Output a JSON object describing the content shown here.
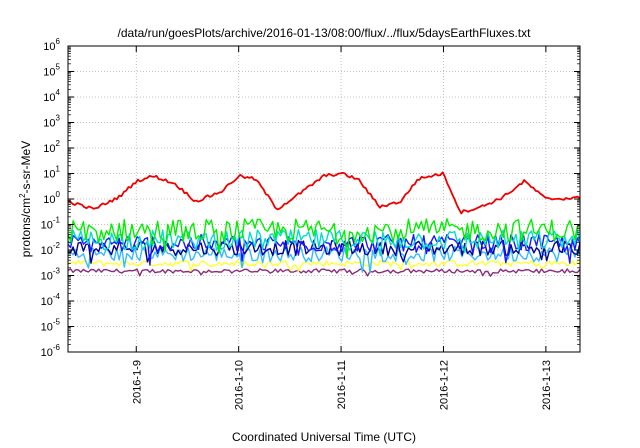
{
  "chart_data": {
    "type": "line",
    "title": "/data/run/goesPlots/archive/2016-01-13/08:00/flux/../flux/5daysEarthFluxes.txt",
    "xlabel": "Coordinated Universal Time (UTC)",
    "ylabel": "protons/cm2-s-sr-MeV",
    "y_scale": "log",
    "ylim": [
      1e-06,
      1000000.0
    ],
    "y_ticks": [
      {
        "base": "10",
        "exp": "-6",
        "value": 1e-06
      },
      {
        "base": "10",
        "exp": "-5",
        "value": 1e-05
      },
      {
        "base": "10",
        "exp": "-4",
        "value": 0.0001
      },
      {
        "base": "10",
        "exp": "-3",
        "value": 0.001
      },
      {
        "base": "10",
        "exp": "-2",
        "value": 0.01
      },
      {
        "base": "10",
        "exp": "-1",
        "value": 0.1
      },
      {
        "base": "10",
        "exp": "0",
        "value": 1
      },
      {
        "base": "10",
        "exp": "1",
        "value": 10
      },
      {
        "base": "10",
        "exp": "2",
        "value": 100
      },
      {
        "base": "10",
        "exp": "3",
        "value": 1000
      },
      {
        "base": "10",
        "exp": "4",
        "value": 10000
      },
      {
        "base": "10",
        "exp": "5",
        "value": 100000
      },
      {
        "base": "10",
        "exp": "6",
        "value": 1000000
      }
    ],
    "xlim": [
      "2016-01-08T08:00",
      "2016-01-13T08:00"
    ],
    "x_ticks": [
      "2016-1-9",
      "2016-1-10",
      "2016-1-11",
      "2016-1-12",
      "2016-1-13"
    ],
    "grid": true,
    "series": [
      {
        "color": "#ee0000",
        "kind": "red_diurnal",
        "x": [
          "2016-01-08T08:00",
          "2016-01-08T14:00",
          "2016-01-08T20:00",
          "2016-01-09T00:00",
          "2016-01-09T04:00",
          "2016-01-09T09:00",
          "2016-01-09T14:00",
          "2016-01-09T20:00",
          "2016-01-10T00:00",
          "2016-01-10T04:00",
          "2016-01-10T09:00",
          "2016-01-10T14:00",
          "2016-01-10T20:00",
          "2016-01-11T00:00",
          "2016-01-11T04:00",
          "2016-01-11T09:00",
          "2016-01-11T14:00",
          "2016-01-11T18:00",
          "2016-01-11T21:00",
          "2016-01-12T00:00",
          "2016-01-12T04:00",
          "2016-01-12T09:00",
          "2016-01-12T14:00",
          "2016-01-12T19:00",
          "2016-01-13T00:00",
          "2016-01-13T08:00"
        ],
        "values": [
          0.8,
          0.4,
          1.2,
          5,
          8,
          4,
          0.8,
          2,
          8,
          6,
          0.4,
          1.5,
          8,
          10,
          6,
          0.5,
          0.8,
          6,
          8,
          10,
          0.3,
          0.5,
          1.2,
          5,
          1.0,
          1.1
        ]
      },
      {
        "color": "#00ee00",
        "level": 0.06,
        "spread": 0.45
      },
      {
        "color": "#00ddcc",
        "level": 0.025,
        "spread": 0.4
      },
      {
        "color": "#1a1aff",
        "level": 0.018,
        "spread": 0.35
      },
      {
        "color": "#000090",
        "level": 0.012,
        "spread": 0.3
      },
      {
        "color": "#33bbff",
        "level": 0.007,
        "spread": 0.3
      },
      {
        "color": "#ffff33",
        "level": 0.003,
        "spread": 0.12
      },
      {
        "color": "#8b2a7a",
        "level": 0.0015,
        "spread": 0.08
      }
    ]
  }
}
